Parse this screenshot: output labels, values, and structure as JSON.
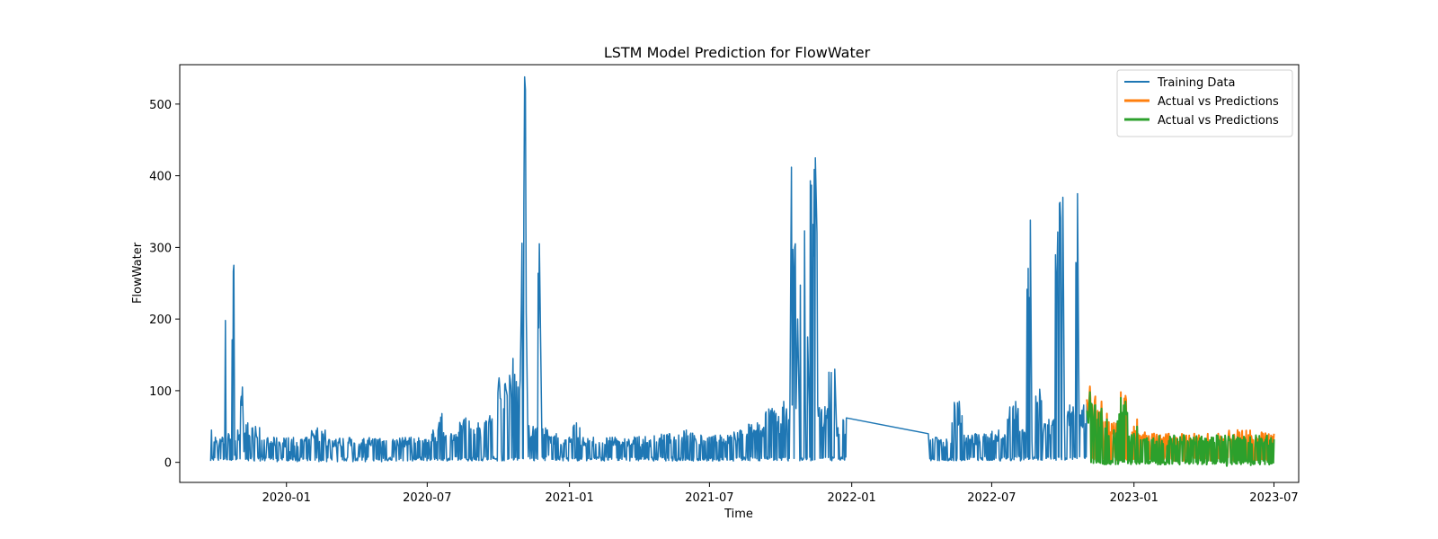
{
  "chart_data": {
    "type": "line",
    "title": "LSTM Model Prediction for FlowWater",
    "xlabel": "Time",
    "ylabel": "FlowWater",
    "xlim": [
      "2019-08-16",
      "2023-08-02"
    ],
    "ylim": [
      -28,
      555
    ],
    "x_ticks": [
      "2020-01",
      "2020-07",
      "2021-01",
      "2021-07",
      "2022-01",
      "2022-07",
      "2023-01",
      "2023-07"
    ],
    "x_tick_dates": [
      "2020-01-01",
      "2020-07-01",
      "2021-01-01",
      "2021-07-01",
      "2022-01-01",
      "2022-07-01",
      "2023-01-01",
      "2023-07-01"
    ],
    "y_ticks": [
      0,
      100,
      200,
      300,
      400,
      500
    ],
    "grid": false,
    "legend_position": "top-right",
    "series": [
      {
        "name": "Training Data",
        "color": "#1f77b4",
        "points": [
          [
            "2019-09-25",
            2
          ],
          [
            "2019-09-26",
            45
          ],
          [
            "2019-09-27",
            5
          ],
          [
            "2019-10-01",
            35
          ],
          [
            "2019-10-05",
            3
          ],
          [
            "2019-10-10",
            35
          ],
          [
            "2019-10-13",
            5
          ],
          [
            "2019-10-14",
            198
          ],
          [
            "2019-10-15",
            8
          ],
          [
            "2019-10-18",
            40
          ],
          [
            "2019-10-22",
            3
          ],
          [
            "2019-10-25",
            275
          ],
          [
            "2019-10-26",
            10
          ],
          [
            "2019-10-30",
            45
          ],
          [
            "2019-11-02",
            5
          ],
          [
            "2019-11-05",
            105
          ],
          [
            "2019-11-07",
            15
          ],
          [
            "2019-11-12",
            55
          ],
          [
            "2019-11-16",
            5
          ],
          [
            "2019-11-22",
            50
          ],
          [
            "2019-11-28",
            2
          ],
          [
            "2019-12-10",
            8
          ],
          [
            "2019-12-20",
            1
          ],
          [
            "2020-01-05",
            15
          ],
          [
            "2020-01-15",
            1
          ],
          [
            "2020-02-01",
            3
          ],
          [
            "2020-02-10",
            48
          ],
          [
            "2020-02-12",
            1
          ],
          [
            "2020-02-20",
            45
          ],
          [
            "2020-02-22",
            1
          ],
          [
            "2020-03-05",
            32
          ],
          [
            "2020-03-07",
            1
          ],
          [
            "2020-03-25",
            32
          ],
          [
            "2020-03-27",
            1
          ],
          [
            "2020-04-10",
            33
          ],
          [
            "2020-04-12",
            1
          ],
          [
            "2020-05-01",
            33
          ],
          [
            "2020-05-03",
            1
          ],
          [
            "2020-05-20",
            30
          ],
          [
            "2020-05-22",
            2
          ],
          [
            "2020-06-10",
            35
          ],
          [
            "2020-06-12",
            2
          ],
          [
            "2020-06-25",
            30
          ],
          [
            "2020-07-05",
            3
          ],
          [
            "2020-07-15",
            45
          ],
          [
            "2020-07-20",
            68
          ],
          [
            "2020-07-23",
            5
          ],
          [
            "2020-08-01",
            40
          ],
          [
            "2020-08-10",
            3
          ],
          [
            "2020-08-20",
            62
          ],
          [
            "2020-08-25",
            8
          ],
          [
            "2020-09-05",
            55
          ],
          [
            "2020-09-12",
            10
          ],
          [
            "2020-09-20",
            65
          ],
          [
            "2020-09-25",
            8
          ],
          [
            "2020-10-02",
            118
          ],
          [
            "2020-10-05",
            15
          ],
          [
            "2020-10-10",
            110
          ],
          [
            "2020-10-14",
            20
          ],
          [
            "2020-10-20",
            145
          ],
          [
            "2020-10-25",
            40
          ],
          [
            "2020-10-30",
            165
          ],
          [
            "2020-11-03",
            360
          ],
          [
            "2020-11-04",
            538
          ],
          [
            "2020-11-05",
            520
          ],
          [
            "2020-11-06",
            210
          ],
          [
            "2020-11-08",
            52
          ],
          [
            "2020-11-15",
            50
          ],
          [
            "2020-11-20",
            48
          ],
          [
            "2020-11-23",
            305
          ],
          [
            "2020-11-24",
            230
          ],
          [
            "2020-11-26",
            55
          ],
          [
            "2020-12-01",
            48
          ],
          [
            "2020-12-05",
            10
          ],
          [
            "2020-12-15",
            40
          ],
          [
            "2020-12-20",
            10
          ],
          [
            "2021-01-01",
            35
          ],
          [
            "2021-01-05",
            5
          ],
          [
            "2021-01-10",
            55
          ],
          [
            "2021-01-15",
            5
          ],
          [
            "2021-02-01",
            35
          ],
          [
            "2021-02-15",
            2
          ],
          [
            "2021-03-01",
            35
          ],
          [
            "2021-03-20",
            2
          ],
          [
            "2021-04-01",
            36
          ],
          [
            "2021-04-20",
            2
          ],
          [
            "2021-05-10",
            40
          ],
          [
            "2021-05-20",
            2
          ],
          [
            "2021-06-01",
            45
          ],
          [
            "2021-06-10",
            2
          ],
          [
            "2021-06-20",
            38
          ],
          [
            "2021-07-05",
            2
          ],
          [
            "2021-07-15",
            38
          ],
          [
            "2021-08-01",
            2
          ],
          [
            "2021-08-10",
            45
          ],
          [
            "2021-08-20",
            3
          ],
          [
            "2021-09-01",
            55
          ],
          [
            "2021-09-10",
            8
          ],
          [
            "2021-09-20",
            75
          ],
          [
            "2021-09-30",
            40
          ],
          [
            "2021-10-05",
            85
          ],
          [
            "2021-10-13",
            80
          ],
          [
            "2021-10-15",
            412
          ],
          [
            "2021-10-16",
            80
          ],
          [
            "2021-10-20",
            305
          ],
          [
            "2021-10-21",
            75
          ],
          [
            "2021-10-23",
            200
          ],
          [
            "2021-10-25",
            80
          ],
          [
            "2021-11-01",
            323
          ],
          [
            "2021-11-02",
            80
          ],
          [
            "2021-11-05",
            175
          ],
          [
            "2021-11-07",
            78
          ],
          [
            "2021-11-15",
            425
          ],
          [
            "2021-11-17",
            320
          ],
          [
            "2021-11-18",
            80
          ],
          [
            "2021-12-01",
            75
          ],
          [
            "2021-12-10",
            130
          ],
          [
            "2021-12-12",
            60
          ],
          [
            "2021-12-20",
            5
          ],
          [
            "2021-12-25",
            62
          ],
          [
            "2022-04-10",
            40
          ],
          [
            "2022-04-12",
            5
          ],
          [
            "2022-04-20",
            35
          ],
          [
            "2022-05-10",
            3
          ],
          [
            "2022-05-20",
            85
          ],
          [
            "2022-05-25",
            5
          ],
          [
            "2022-06-10",
            40
          ],
          [
            "2022-06-25",
            3
          ],
          [
            "2022-07-10",
            45
          ],
          [
            "2022-07-20",
            5
          ],
          [
            "2022-08-01",
            85
          ],
          [
            "2022-08-05",
            10
          ],
          [
            "2022-08-15",
            55
          ],
          [
            "2022-08-20",
            338
          ],
          [
            "2022-08-22",
            30
          ],
          [
            "2022-09-01",
            102
          ],
          [
            "2022-09-05",
            20
          ],
          [
            "2022-09-20",
            60
          ],
          [
            "2022-10-01",
            370
          ],
          [
            "2022-10-03",
            65
          ],
          [
            "2022-10-10",
            80
          ],
          [
            "2022-10-15",
            65
          ],
          [
            "2022-10-20",
            375
          ],
          [
            "2022-10-22",
            72
          ],
          [
            "2022-10-28",
            80
          ],
          [
            "2022-11-01",
            82
          ]
        ]
      },
      {
        "name": "Actual vs Predictions",
        "color": "#ff7f0e",
        "points": [
          [
            "2022-11-01",
            88
          ],
          [
            "2022-11-03",
            65
          ],
          [
            "2022-11-05",
            106
          ],
          [
            "2022-11-08",
            80
          ],
          [
            "2022-11-12",
            92
          ],
          [
            "2022-11-15",
            72
          ],
          [
            "2022-11-20",
            85
          ],
          [
            "2022-11-23",
            5
          ],
          [
            "2022-11-27",
            68
          ],
          [
            "2022-12-01",
            10
          ],
          [
            "2022-12-06",
            55
          ],
          [
            "2022-12-10",
            15
          ],
          [
            "2022-12-15",
            98
          ],
          [
            "2022-12-18",
            60
          ],
          [
            "2022-12-21",
            93
          ],
          [
            "2022-12-25",
            10
          ],
          [
            "2023-01-01",
            50
          ],
          [
            "2023-01-05",
            60
          ],
          [
            "2023-01-08",
            5
          ],
          [
            "2023-01-15",
            42
          ],
          [
            "2023-02-01",
            5
          ],
          [
            "2023-02-15",
            40
          ],
          [
            "2023-03-01",
            5
          ],
          [
            "2023-03-20",
            40
          ],
          [
            "2023-04-05",
            5
          ],
          [
            "2023-04-20",
            40
          ],
          [
            "2023-05-01",
            5
          ],
          [
            "2023-05-15",
            45
          ],
          [
            "2023-06-01",
            5
          ],
          [
            "2023-06-15",
            42
          ],
          [
            "2023-06-25",
            5
          ],
          [
            "2023-07-01",
            40
          ]
        ]
      },
      {
        "name": "Actual vs Predictions",
        "color": "#2ca02c",
        "points": [
          [
            "2022-11-01",
            72
          ],
          [
            "2022-11-03",
            55
          ],
          [
            "2022-11-05",
            98
          ],
          [
            "2022-11-08",
            68
          ],
          [
            "2022-11-12",
            80
          ],
          [
            "2022-11-15",
            60
          ],
          [
            "2022-11-20",
            75
          ],
          [
            "2022-11-23",
            -2
          ],
          [
            "2022-11-27",
            60
          ],
          [
            "2022-12-01",
            2
          ],
          [
            "2022-12-06",
            45
          ],
          [
            "2022-12-10",
            5
          ],
          [
            "2022-12-15",
            90
          ],
          [
            "2022-12-18",
            50
          ],
          [
            "2022-12-21",
            85
          ],
          [
            "2022-12-25",
            2
          ],
          [
            "2023-01-01",
            40
          ],
          [
            "2023-01-05",
            50
          ],
          [
            "2023-01-08",
            -2
          ],
          [
            "2023-01-15",
            32
          ],
          [
            "2023-02-01",
            -3
          ],
          [
            "2023-02-15",
            30
          ],
          [
            "2023-03-01",
            -3
          ],
          [
            "2023-03-20",
            30
          ],
          [
            "2023-04-05",
            -3
          ],
          [
            "2023-04-20",
            32
          ],
          [
            "2023-05-01",
            -5
          ],
          [
            "2023-05-15",
            35
          ],
          [
            "2023-06-01",
            -4
          ],
          [
            "2023-06-15",
            33
          ],
          [
            "2023-06-25",
            -3
          ],
          [
            "2023-07-01",
            32
          ]
        ]
      }
    ]
  }
}
